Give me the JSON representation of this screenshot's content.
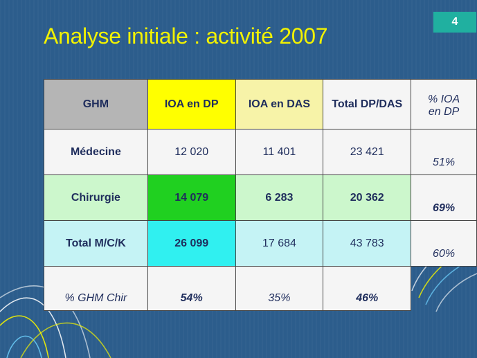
{
  "slide_number": "4",
  "title": "Analyse initiale : activité 2007",
  "colors": {
    "background": "#2c5d8c",
    "title": "#f2f200",
    "slide_number_bg": "#20b0a0",
    "ghm_header": "#b5b5b5",
    "ioa_dp_header": "#ffff00",
    "ioa_das_header": "#f7f3a8",
    "neutral": "#f5f5f5",
    "chir_light": "#ccf7cc",
    "chir_strong": "#20d020",
    "total_light": "#c5f3f5",
    "total_strong": "#30f0f0"
  },
  "table": {
    "headers": {
      "ghm": "GHM",
      "ioa_dp": "IOA en DP",
      "ioa_das": "IOA en DAS",
      "total": "Total DP/DAS",
      "pct_ioa_line1": "% IOA",
      "pct_ioa_line2": "en DP"
    },
    "rows": [
      {
        "label": "Médecine",
        "ioa_dp": "12 020",
        "ioa_das": "11 401",
        "total": "23 421",
        "pct": "51%"
      },
      {
        "label": "Chirurgie",
        "ioa_dp": "14 079",
        "ioa_das": "6 283",
        "total": "20 362",
        "pct": "69%"
      },
      {
        "label": "Total M/C/K",
        "ioa_dp": "26 099",
        "ioa_das": "17 684",
        "total": "43 783",
        "pct": "60%"
      }
    ],
    "footer": {
      "label": "% GHM Chir",
      "ioa_dp": "54%",
      "ioa_das": "35%",
      "total": "46%"
    }
  }
}
